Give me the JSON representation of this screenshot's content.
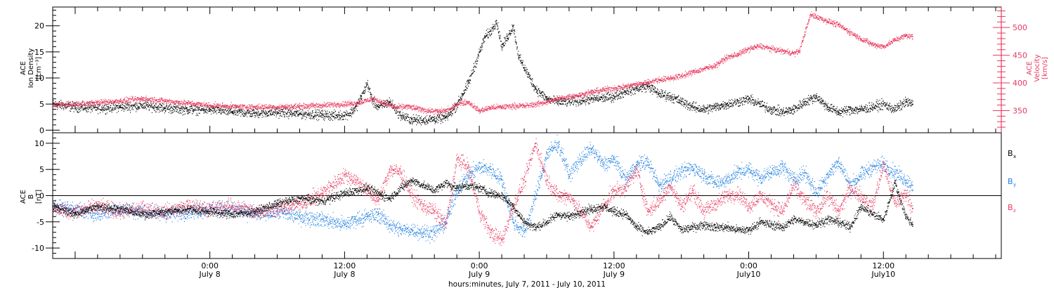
{
  "chart_data": [
    {
      "type": "scatter",
      "title": "",
      "xlabel": "hours:minutes, July  7, 2011 - July 10, 2011",
      "x_ticks": [
        {
          "time": "0:00",
          "date": "July 8"
        },
        {
          "time": "12:00",
          "date": "July 8"
        },
        {
          "time": "0:00",
          "date": "July 9"
        },
        {
          "time": "12:00",
          "date": "July 9"
        },
        {
          "time": "0:00",
          "date": "July10"
        },
        {
          "time": "12:00",
          "date": "July10"
        }
      ],
      "x_ticks_hours": [
        24,
        36,
        48,
        60,
        72,
        84
      ],
      "xlim_hours": [
        10.0,
        94.5
      ],
      "y_left": {
        "label_lines": [
          "ACE",
          "Ion Density",
          "[cm⁻³]"
        ],
        "ticks": [
          0,
          5,
          10,
          15,
          20
        ],
        "ylim": [
          -0.5,
          23.6
        ],
        "color": "#000000"
      },
      "y_right": {
        "label_lines": [
          "ACE",
          "Velocity",
          "[km/s]"
        ],
        "ticks": [
          350,
          400,
          450,
          500
        ],
        "ylim": [
          310,
          537
        ],
        "color": "#e8395e"
      },
      "series": [
        {
          "name": "Ion Density",
          "axis": "left",
          "color": "#000000",
          "x_hours": [
            10.0,
            12,
            14,
            16,
            18,
            20,
            22,
            24,
            26,
            28,
            30,
            32,
            34,
            35.5,
            36.5,
            37,
            37.5,
            38,
            38.5,
            39,
            40,
            41,
            42,
            43,
            44,
            45,
            45.5,
            46,
            46.5,
            47,
            47.5,
            48,
            48.5,
            49,
            49.5,
            50,
            50.5,
            51,
            51.5,
            52,
            53,
            54,
            55,
            56,
            58,
            60,
            61,
            62,
            63,
            64,
            65,
            66,
            67,
            68,
            69,
            70,
            71,
            72,
            73,
            74,
            75,
            76,
            77,
            78,
            79,
            80,
            81,
            82,
            83,
            84,
            85,
            86,
            86.6
          ],
          "values": [
            5.0,
            4.5,
            4.3,
            4.5,
            4.8,
            4.3,
            4.0,
            4.0,
            3.6,
            3.3,
            3.5,
            3.2,
            3.0,
            2.8,
            3.3,
            4.5,
            6.5,
            9.0,
            5.5,
            4.5,
            5.5,
            2.8,
            2.0,
            2.0,
            2.2,
            2.5,
            3.5,
            5.0,
            7.0,
            9.0,
            12.0,
            15.0,
            18.0,
            19.0,
            21.0,
            16.0,
            18.0,
            20.0,
            14.0,
            12.0,
            8.0,
            6.0,
            5.5,
            5.5,
            6.0,
            6.5,
            7.5,
            8.0,
            8.5,
            7.0,
            6.5,
            5.5,
            4.5,
            4.0,
            4.5,
            5.0,
            5.5,
            6.0,
            5.0,
            4.0,
            3.5,
            4.0,
            5.5,
            6.5,
            4.5,
            3.5,
            4.0,
            4.0,
            4.5,
            5.0,
            4.0,
            5.5,
            5.0
          ]
        },
        {
          "name": "Velocity",
          "axis": "right",
          "color": "#e8395e",
          "x_hours": [
            10.0,
            12,
            14,
            16,
            18,
            20,
            22,
            24,
            26,
            28,
            30,
            32,
            34,
            35.5,
            36.5,
            37.5,
            38.5,
            39.5,
            40.5,
            41.5,
            42.5,
            43.5,
            44.5,
            45.5,
            46,
            47,
            48,
            49,
            50,
            51,
            52,
            53,
            54,
            55,
            56,
            57,
            58,
            59,
            60,
            61,
            62,
            63,
            64,
            65,
            66,
            67,
            68,
            69,
            70,
            71,
            72,
            73,
            74,
            75,
            76,
            76.5,
            77,
            77.5,
            78,
            79,
            80,
            81,
            82,
            83,
            84,
            85,
            86,
            86.6
          ],
          "values": [
            361,
            362,
            365,
            368,
            372,
            368,
            364,
            360,
            358,
            357,
            357,
            358,
            360,
            362,
            363,
            366,
            372,
            364,
            356,
            358,
            354,
            350,
            349,
            354,
            363,
            366,
            350,
            356,
            357,
            359,
            359,
            362,
            366,
            372,
            376,
            379,
            384,
            388,
            391,
            394,
            398,
            402,
            406,
            409,
            413,
            420,
            426,
            432,
            446,
            452,
            462,
            467,
            462,
            458,
            454,
            458,
            492,
            524,
            520,
            512,
            505,
            492,
            480,
            470,
            466,
            478,
            486,
            484
          ]
        }
      ]
    },
    {
      "type": "scatter",
      "title": "",
      "y_left": {
        "label_lines": [
          "ACE",
          "B",
          "[nT]"
        ],
        "ticks": [
          -10,
          -5,
          0,
          5,
          10
        ],
        "ylim": [
          -12,
          12
        ],
        "color": "#000000"
      },
      "zero_line": true,
      "legend_position": "right",
      "series": [
        {
          "name": "B",
          "subscript": "x",
          "color": "#000000",
          "x_hours": [
            10.0,
            12,
            14,
            16,
            18,
            20,
            22,
            24,
            26,
            28,
            30,
            32,
            34,
            36,
            38,
            40,
            41,
            42,
            43,
            44,
            45,
            46,
            47,
            48,
            49,
            50,
            51,
            52,
            53,
            54,
            55,
            56,
            57,
            58,
            59,
            60,
            61,
            62,
            63,
            64,
            65,
            66,
            67,
            68,
            69,
            70,
            71,
            72,
            73,
            74,
            75,
            76,
            77,
            78,
            79,
            80,
            81,
            82,
            83,
            84,
            85,
            86,
            86.6
          ],
          "values": [
            -2.0,
            -3.5,
            -2.0,
            -2.5,
            -3.5,
            -3.0,
            -2.5,
            -3.0,
            -3.5,
            -3.0,
            -1.5,
            -0.5,
            -1.0,
            0.5,
            1.5,
            -0.5,
            1.5,
            3.0,
            2.0,
            1.0,
            2.5,
            1.5,
            2.0,
            1.5,
            0.5,
            0.0,
            -2.0,
            -5.0,
            -6.0,
            -5.0,
            -3.5,
            -4.0,
            -3.0,
            -2.5,
            -2.0,
            -3.0,
            -3.5,
            -6.0,
            -7.0,
            -6.0,
            -4.0,
            -6.5,
            -6.0,
            -5.5,
            -6.0,
            -6.0,
            -6.5,
            -6.5,
            -5.0,
            -5.5,
            -6.0,
            -4.5,
            -5.0,
            -5.5,
            -4.5,
            -5.0,
            -6.0,
            -2.0,
            -3.5,
            -4.5,
            2.5,
            -4.0,
            -5.5
          ]
        },
        {
          "name": "B",
          "subscript": "y",
          "color": "#1f7fe0",
          "x_hours": [
            10.0,
            12,
            14,
            16,
            18,
            20,
            22,
            24,
            26,
            28,
            30,
            32,
            34,
            36,
            37,
            38,
            39,
            40,
            41,
            42,
            43,
            44,
            45,
            46,
            47,
            48,
            49,
            50,
            51,
            52,
            53,
            54,
            55,
            56,
            57,
            58,
            59,
            60,
            61,
            62,
            63,
            64,
            65,
            66,
            67,
            68,
            69,
            70,
            71,
            72,
            73,
            74,
            75,
            76,
            77,
            78,
            79,
            80,
            81,
            82,
            83,
            84,
            85,
            86,
            86.6
          ],
          "values": [
            -2.0,
            -2.5,
            -3.5,
            -2.5,
            -3.0,
            -3.5,
            -3.0,
            -2.5,
            -2.5,
            -3.5,
            -3.0,
            -4.0,
            -4.5,
            -5.5,
            -4.5,
            -4.0,
            -3.5,
            -5.5,
            -6.5,
            -6.5,
            -7.0,
            -7.0,
            -5.0,
            1.0,
            4.0,
            5.5,
            5.0,
            3.0,
            -5.0,
            -7.0,
            0.0,
            8.0,
            10.0,
            4.0,
            7.0,
            9.0,
            6.0,
            7.0,
            3.0,
            6.0,
            6.5,
            2.0,
            3.5,
            4.5,
            5.5,
            4.0,
            2.5,
            3.0,
            4.5,
            5.0,
            3.5,
            4.5,
            5.5,
            3.0,
            4.5,
            0.5,
            4.0,
            6.5,
            2.0,
            4.0,
            5.5,
            6.0,
            4.5,
            3.0,
            2.0
          ]
        },
        {
          "name": "B",
          "subscript": "z",
          "color": "#e8395e",
          "x_hours": [
            10.0,
            12,
            14,
            16,
            18,
            20,
            22,
            24,
            26,
            28,
            30,
            32,
            34,
            36,
            37,
            38,
            39,
            40,
            41,
            42,
            43,
            44,
            45,
            46,
            47,
            48,
            49,
            50,
            51,
            52,
            53,
            54,
            55,
            56,
            57,
            58,
            59,
            60,
            61,
            62,
            63,
            64,
            65,
            66,
            67,
            68,
            69,
            70,
            71,
            72,
            73,
            74,
            75,
            76,
            77,
            78,
            79,
            80,
            81,
            82,
            83,
            84,
            85,
            86,
            86.6
          ],
          "values": [
            -2.5,
            -3.0,
            -2.0,
            -3.0,
            -2.5,
            -3.0,
            -2.0,
            -2.5,
            -2.0,
            -3.0,
            -2.5,
            -1.5,
            0.5,
            4.0,
            3.0,
            1.0,
            -1.0,
            5.0,
            4.5,
            0.0,
            -2.0,
            -3.0,
            -5.5,
            7.0,
            5.5,
            -3.0,
            -7.0,
            -8.5,
            -2.0,
            3.0,
            10.0,
            3.0,
            0.0,
            0.0,
            -3.0,
            -6.0,
            -2.0,
            1.0,
            1.5,
            5.0,
            -3.0,
            -1.0,
            2.0,
            -2.0,
            1.0,
            -3.0,
            -1.5,
            0.0,
            0.5,
            -2.0,
            0.0,
            -1.5,
            -3.0,
            2.0,
            -1.0,
            -3.0,
            0.0,
            -3.0,
            1.5,
            0.0,
            -2.0,
            6.0,
            -1.5,
            0.5,
            -2.5
          ]
        }
      ]
    }
  ]
}
